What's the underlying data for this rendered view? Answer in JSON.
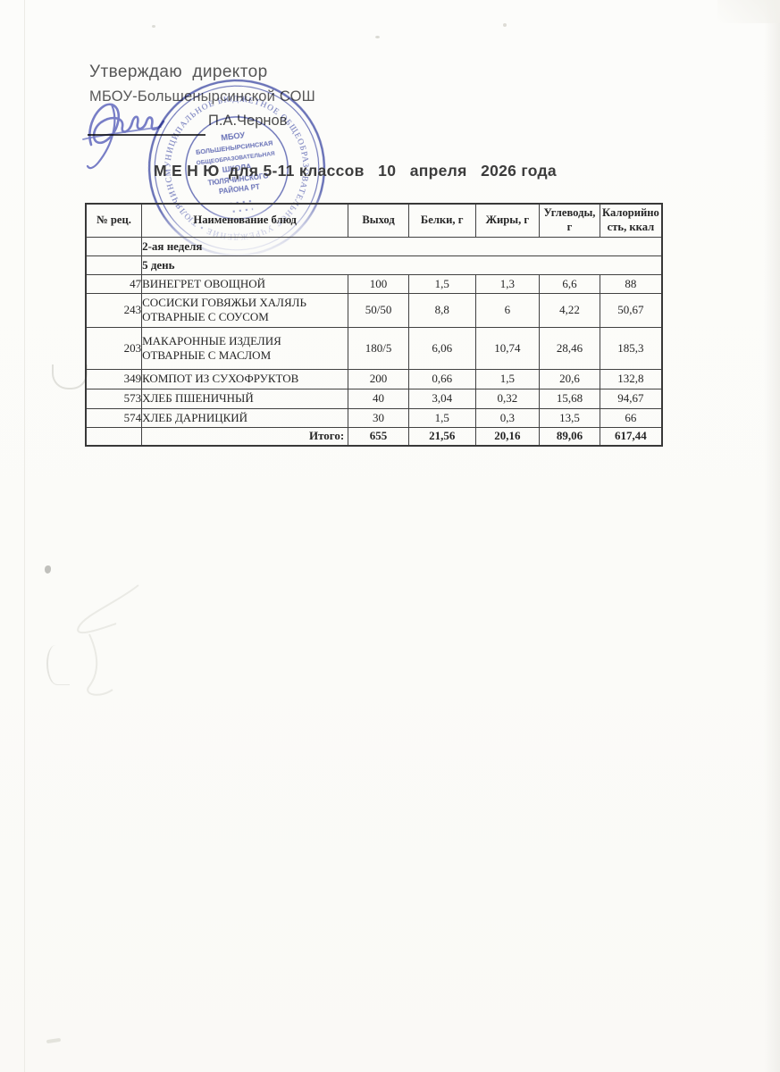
{
  "document": {
    "approval_line1": "Утверждаю  директор",
    "approval_line2": "МБОУ-Большенырсинской СОШ",
    "director_name": "П.А.Чернов",
    "title": "М Е Н Ю  для 5-11 классов   10   апреля   2026 года"
  },
  "stamp": {
    "ring_text": "МУНИЦИПАЛЬНОЕ БЮДЖЕТНОЕ ОБЩЕОБРАЗОВАТЕЛЬНОЕ УЧРЕЖДЕНИЕ • ТЮЛЯЧИНСКОГО МУНИЦИПАЛЬНОГО РАЙОНА РЕСПУБЛИКИ ТАТАРСТАН •",
    "center_lines": [
      "МБОУ",
      "БОЛЬШЕНЫРСИНСКАЯ",
      "ОБЩЕОБРАЗОВАТЕЛЬНАЯ",
      "ШКОЛА",
      "ТЮЛЯЧИНСКОГО",
      "РАЙОНА РТ"
    ],
    "color": "#4a55ad"
  },
  "signature": {
    "color": "#6a72c6"
  },
  "menu_table": {
    "headers": [
      "№ рец.",
      "Наименование блюд",
      "Выход",
      "Белки, г",
      "Жиры, г",
      "Углеводы,\nг",
      "Калорийно\nсть, ккал"
    ],
    "section_rows": [
      "2-ая неделя",
      "5 день"
    ],
    "rows": [
      {
        "num": "47",
        "name": "ВИНЕГРЕТ ОВОЩНОЙ",
        "output": "100",
        "protein": "1,5",
        "fat": "1,3",
        "carbs": "6,6",
        "kcal": "88"
      },
      {
        "num": "243",
        "name": "СОСИСКИ ГОВЯЖЬИ ХАЛЯЛЬ\nОТВАРНЫЕ С СОУСОМ",
        "output": "50/50",
        "protein": "8,8",
        "fat": "6",
        "carbs": "4,22",
        "kcal": "50,67"
      },
      {
        "num": "203",
        "name": "МАКАРОННЫЕ ИЗДЕЛИЯ\nОТВАРНЫЕ С МАСЛОМ",
        "output": "180/5",
        "protein": "6,06",
        "fat": "10,74",
        "carbs": "28,46",
        "kcal": "185,3"
      },
      {
        "num": "349",
        "name": "КОМПОТ ИЗ СУХОФРУКТОВ",
        "output": "200",
        "protein": "0,66",
        "fat": "1,5",
        "carbs": "20,6",
        "kcal": "132,8"
      },
      {
        "num": "573",
        "name": "ХЛЕБ ПШЕНИЧНЫЙ",
        "output": "40",
        "protein": "3,04",
        "fat": "0,32",
        "carbs": "15,68",
        "kcal": "94,67"
      },
      {
        "num": "574",
        "name": "ХЛЕБ ДАРНИЦКИЙ",
        "output": "30",
        "protein": "1,5",
        "fat": "0,3",
        "carbs": "13,5",
        "kcal": "66"
      }
    ],
    "total": {
      "label": "Итого:",
      "output": "655",
      "protein": "21,56",
      "fat": "20,16",
      "carbs": "89,06",
      "kcal": "617,44"
    }
  }
}
